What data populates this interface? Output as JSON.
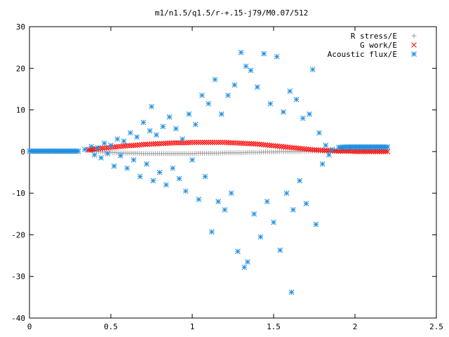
{
  "chart_data": {
    "type": "scatter",
    "title": "m1/n1.5/q1.5/r-+.15-j79/M0.07/512",
    "xlabel": "",
    "ylabel": "",
    "xlim": [
      0,
      2.5
    ],
    "ylim": [
      -40,
      30
    ],
    "x_ticks": [
      "0",
      "0.5",
      "1",
      "1.5",
      "2",
      "2.5"
    ],
    "y_ticks": [
      "30",
      "20",
      "10",
      "0",
      "-10",
      "-20",
      "-30",
      "-40"
    ],
    "grid": false,
    "legend_position": "top-right",
    "series": [
      {
        "name": "R stress/E",
        "marker": "plus",
        "color": "#a0a0a0",
        "points": [
          [
            0.36,
            0.3
          ],
          [
            0.4,
            0.1
          ],
          [
            0.45,
            -0.1
          ],
          [
            0.5,
            -0.2
          ],
          [
            0.55,
            -0.3
          ],
          [
            0.6,
            -0.4
          ],
          [
            0.65,
            -0.4
          ],
          [
            0.7,
            -0.5
          ],
          [
            0.75,
            -0.5
          ],
          [
            0.8,
            -0.5
          ],
          [
            0.85,
            -0.5
          ],
          [
            0.9,
            -0.5
          ],
          [
            0.95,
            -0.5
          ],
          [
            1.0,
            -0.5
          ],
          [
            1.05,
            -0.4
          ],
          [
            1.1,
            -0.4
          ],
          [
            1.15,
            -0.4
          ],
          [
            1.2,
            -0.3
          ],
          [
            1.25,
            -0.3
          ],
          [
            1.3,
            -0.3
          ],
          [
            1.35,
            -0.2
          ],
          [
            1.4,
            -0.2
          ],
          [
            1.45,
            -0.1
          ],
          [
            1.5,
            -0.1
          ],
          [
            1.55,
            0.0
          ],
          [
            1.6,
            0.0
          ],
          [
            1.65,
            0.0
          ],
          [
            1.7,
            0.1
          ],
          [
            1.75,
            0.1
          ],
          [
            1.8,
            0.1
          ],
          [
            1.85,
            0.1
          ],
          [
            1.9,
            0.1
          ],
          [
            1.95,
            0.1
          ],
          [
            2.0,
            0.1
          ],
          [
            2.05,
            0.1
          ],
          [
            2.1,
            0.1
          ],
          [
            2.15,
            0.1
          ],
          [
            2.2,
            0.1
          ]
        ]
      },
      {
        "name": "G work/E",
        "marker": "cross",
        "color": "#ff0000",
        "points": [
          [
            0.36,
            0.4
          ],
          [
            0.4,
            0.6
          ],
          [
            0.45,
            0.8
          ],
          [
            0.5,
            1.0
          ],
          [
            0.55,
            1.2
          ],
          [
            0.6,
            1.4
          ],
          [
            0.65,
            1.5
          ],
          [
            0.7,
            1.7
          ],
          [
            0.75,
            1.8
          ],
          [
            0.8,
            1.9
          ],
          [
            0.85,
            2.0
          ],
          [
            0.9,
            2.1
          ],
          [
            0.95,
            2.1
          ],
          [
            1.0,
            2.2
          ],
          [
            1.05,
            2.2
          ],
          [
            1.1,
            2.2
          ],
          [
            1.15,
            2.2
          ],
          [
            1.2,
            2.2
          ],
          [
            1.25,
            2.1
          ],
          [
            1.3,
            2.0
          ],
          [
            1.35,
            1.9
          ],
          [
            1.4,
            1.8
          ],
          [
            1.45,
            1.6
          ],
          [
            1.5,
            1.4
          ],
          [
            1.55,
            1.2
          ],
          [
            1.6,
            1.0
          ],
          [
            1.65,
            0.8
          ],
          [
            1.7,
            0.6
          ],
          [
            1.75,
            0.4
          ],
          [
            1.8,
            0.3
          ],
          [
            1.85,
            0.2
          ],
          [
            1.9,
            0.1
          ],
          [
            1.95,
            0.1
          ],
          [
            2.0,
            0.0
          ],
          [
            2.05,
            0.0
          ],
          [
            2.1,
            0.0
          ],
          [
            2.15,
            0.0
          ],
          [
            2.2,
            0.0
          ]
        ]
      },
      {
        "name": "Acoustic flux/E",
        "marker": "star",
        "color": "#1f8fe0",
        "points": [
          [
            0.0,
            0.1
          ],
          [
            0.05,
            0.1
          ],
          [
            0.1,
            0.1
          ],
          [
            0.15,
            0.1
          ],
          [
            0.2,
            0.1
          ],
          [
            0.25,
            0.1
          ],
          [
            0.3,
            0.1
          ],
          [
            0.34,
            0.5
          ],
          [
            0.38,
            1.2
          ],
          [
            0.4,
            -0.8
          ],
          [
            0.42,
            0.9
          ],
          [
            0.44,
            -1.5
          ],
          [
            0.46,
            2.0
          ],
          [
            0.48,
            -0.5
          ],
          [
            0.5,
            1.5
          ],
          [
            0.52,
            -3.5
          ],
          [
            0.54,
            3.0
          ],
          [
            0.56,
            -1.0
          ],
          [
            0.58,
            2.5
          ],
          [
            0.6,
            -4.0
          ],
          [
            0.62,
            4.5
          ],
          [
            0.64,
            -2.0
          ],
          [
            0.66,
            3.5
          ],
          [
            0.68,
            -6.0
          ],
          [
            0.7,
            7.0
          ],
          [
            0.72,
            -3.0
          ],
          [
            0.74,
            5.0
          ],
          [
            0.75,
            10.8
          ],
          [
            0.76,
            -7.0
          ],
          [
            0.78,
            4.0
          ],
          [
            0.8,
            -5.0
          ],
          [
            0.82,
            6.0
          ],
          [
            0.84,
            -8.0
          ],
          [
            0.86,
            8.3
          ],
          [
            0.88,
            -4.0
          ],
          [
            0.9,
            5.5
          ],
          [
            0.92,
            -6.5
          ],
          [
            0.94,
            3.0
          ],
          [
            0.96,
            -9.5
          ],
          [
            0.98,
            9.0
          ],
          [
            1.0,
            -2.0
          ],
          [
            1.02,
            6.5
          ],
          [
            1.04,
            -11.5
          ],
          [
            1.06,
            13.5
          ],
          [
            1.08,
            -6.0
          ],
          [
            1.1,
            11.5
          ],
          [
            1.12,
            -19.3
          ],
          [
            1.14,
            17.3
          ],
          [
            1.16,
            -12.0
          ],
          [
            1.18,
            9.0
          ],
          [
            1.2,
            -14.0
          ],
          [
            1.22,
            13.5
          ],
          [
            1.24,
            -10.0
          ],
          [
            1.26,
            16.0
          ],
          [
            1.28,
            -24.0
          ],
          [
            1.3,
            23.8
          ],
          [
            1.32,
            -27.8
          ],
          [
            1.33,
            20.5
          ],
          [
            1.34,
            -26.5
          ],
          [
            1.36,
            19.5
          ],
          [
            1.38,
            -15.0
          ],
          [
            1.4,
            15.5
          ],
          [
            1.42,
            -20.5
          ],
          [
            1.44,
            23.5
          ],
          [
            1.46,
            -12.0
          ],
          [
            1.48,
            11.5
          ],
          [
            1.5,
            -17.0
          ],
          [
            1.52,
            22.8
          ],
          [
            1.54,
            -23.7
          ],
          [
            1.56,
            9.5
          ],
          [
            1.58,
            -10.0
          ],
          [
            1.6,
            14.5
          ],
          [
            1.62,
            -14.0
          ],
          [
            1.64,
            12.5
          ],
          [
            1.66,
            -7.0
          ],
          [
            1.68,
            8.0
          ],
          [
            1.7,
            -12.5
          ],
          [
            1.72,
            9.0
          ],
          [
            1.74,
            19.7
          ],
          [
            1.76,
            -17.5
          ],
          [
            1.78,
            4.5
          ],
          [
            1.8,
            -3.0
          ],
          [
            1.82,
            1.5
          ],
          [
            1.84,
            -0.8
          ],
          [
            1.86,
            0.5
          ],
          [
            1.61,
            -33.8
          ],
          [
            1.9,
            1.0
          ],
          [
            1.95,
            1.1
          ],
          [
            2.0,
            1.1
          ],
          [
            2.05,
            1.1
          ],
          [
            2.1,
            1.1
          ],
          [
            2.15,
            1.1
          ],
          [
            2.2,
            1.1
          ]
        ]
      }
    ]
  }
}
